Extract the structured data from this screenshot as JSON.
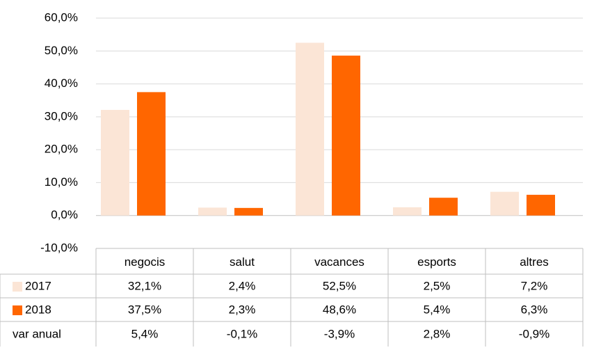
{
  "chart_data": {
    "type": "bar",
    "categories": [
      "negocis",
      "salut",
      "vacances",
      "esports",
      "altres"
    ],
    "series": [
      {
        "name": "2017",
        "color": "#fbe5d6",
        "values": [
          32.1,
          2.4,
          52.5,
          2.5,
          7.2
        ],
        "value_labels": [
          "32,1%",
          "2,4%",
          "52,5%",
          "2,5%",
          "7,2%"
        ]
      },
      {
        "name": "2018",
        "color": "#ff6600",
        "values": [
          37.5,
          2.3,
          48.6,
          5.4,
          6.3
        ],
        "value_labels": [
          "37,5%",
          "2,3%",
          "48,6%",
          "5,4%",
          "6,3%"
        ]
      }
    ],
    "table_rows": [
      {
        "name": "var anual",
        "values": [
          5.4,
          -0.1,
          -3.9,
          2.8,
          -0.9
        ],
        "value_labels": [
          "5,4%",
          "-0,1%",
          "-3,9%",
          "2,8%",
          "-0,9%"
        ]
      }
    ],
    "ylim": [
      -10,
      60
    ],
    "yticks": [
      {
        "value": -10,
        "label": "-10,0%"
      },
      {
        "value": 0,
        "label": "0,0%"
      },
      {
        "value": 10,
        "label": "10,0%"
      },
      {
        "value": 20,
        "label": "20,0%"
      },
      {
        "value": 30,
        "label": "30,0%"
      },
      {
        "value": 40,
        "label": "40,0%"
      },
      {
        "value": 50,
        "label": "50,0%"
      },
      {
        "value": 60,
        "label": "60,0%"
      }
    ],
    "grid": true
  }
}
